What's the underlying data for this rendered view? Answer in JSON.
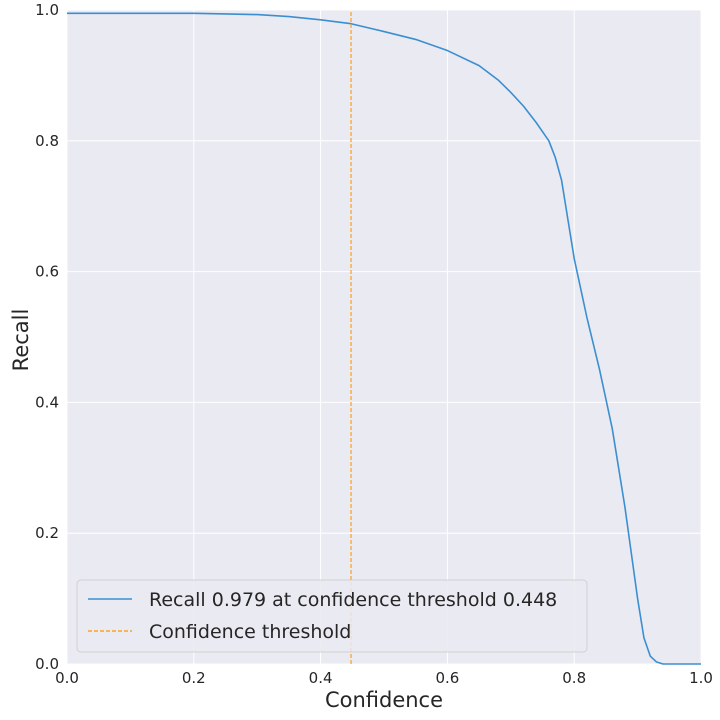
{
  "chart_data": {
    "type": "line",
    "title": "",
    "xlabel": "Confidence",
    "ylabel": "Recall",
    "xlim": [
      0.0,
      1.0
    ],
    "ylim": [
      0.0,
      1.0
    ],
    "grid": true,
    "background_color": "#eaeaf2",
    "legend_placement": "lower-left",
    "xticks": [
      "0.0",
      "0.2",
      "0.4",
      "0.6",
      "0.8",
      "1.0"
    ],
    "yticks": [
      "0.0",
      "0.2",
      "0.4",
      "0.6",
      "0.8",
      "1.0"
    ],
    "series": [
      {
        "name": "Recall 0.979 at confidence threshold 0.448",
        "color": "#3b8fd0",
        "x": [
          0.0,
          0.05,
          0.1,
          0.15,
          0.2,
          0.25,
          0.3,
          0.35,
          0.4,
          0.448,
          0.5,
          0.55,
          0.6,
          0.65,
          0.68,
          0.7,
          0.72,
          0.74,
          0.76,
          0.77,
          0.78,
          0.79,
          0.8,
          0.82,
          0.84,
          0.86,
          0.87,
          0.88,
          0.89,
          0.9,
          0.91,
          0.92,
          0.93,
          0.94,
          0.96,
          0.98,
          1.0
        ],
        "y": [
          0.995,
          0.995,
          0.995,
          0.995,
          0.995,
          0.994,
          0.993,
          0.99,
          0.985,
          0.979,
          0.967,
          0.955,
          0.938,
          0.915,
          0.893,
          0.874,
          0.853,
          0.828,
          0.8,
          0.775,
          0.74,
          0.68,
          0.62,
          0.53,
          0.45,
          0.36,
          0.3,
          0.24,
          0.17,
          0.1,
          0.04,
          0.012,
          0.003,
          0.0,
          0.0,
          0.0,
          0.0
        ]
      },
      {
        "name": "Confidence threshold",
        "color": "#ff9f1c",
        "dashed": true,
        "x": [
          0.448,
          0.448
        ],
        "y": [
          0.0,
          1.0
        ]
      }
    ]
  }
}
